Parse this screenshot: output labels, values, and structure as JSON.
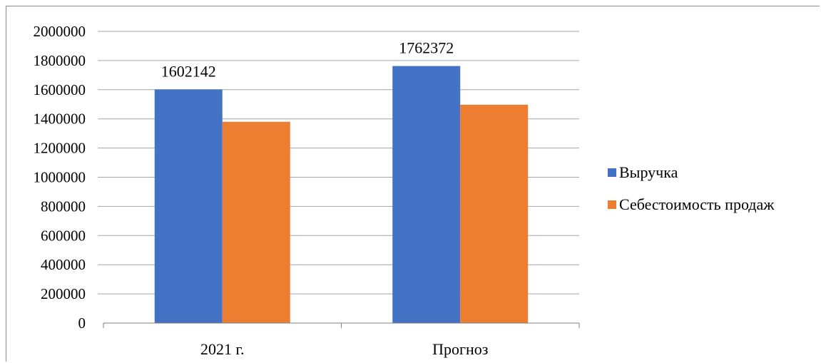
{
  "chart_data": {
    "type": "bar",
    "categories": [
      "2021 г.",
      "Прогноз"
    ],
    "series": [
      {
        "name": "Выручка",
        "values": [
          1602142,
          1762372
        ],
        "color": "#4472c4"
      },
      {
        "name": "Себестоимость продаж",
        "values": [
          1380000,
          1497000
        ],
        "color": "#ed7d31"
      }
    ],
    "data_labels": {
      "series_index": 0,
      "labels": [
        "1602142",
        "1762372"
      ]
    },
    "ylim": [
      0,
      2000000
    ],
    "y_ticks": [
      "0",
      "200000",
      "400000",
      "600000",
      "800000",
      "1000000",
      "1200000",
      "1400000",
      "1600000",
      "1800000",
      "2000000"
    ],
    "grid": true,
    "legend_position": "right",
    "title": "",
    "xlabel": "",
    "ylabel": ""
  },
  "colors": {
    "gridline": "#a6a6a6",
    "axis": "#7f7f7f",
    "frame": "#8c8c8c"
  }
}
